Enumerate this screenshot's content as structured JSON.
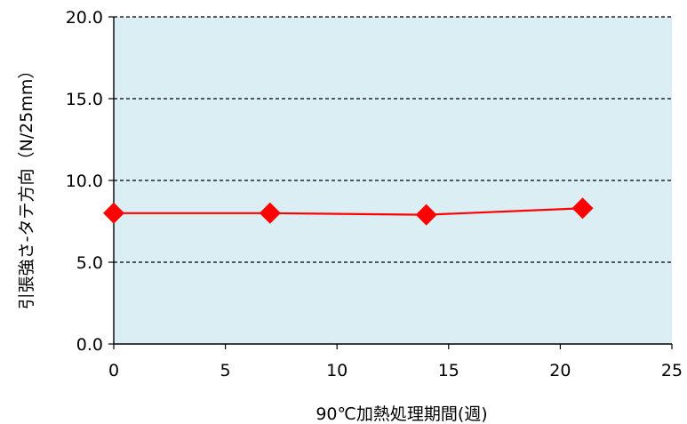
{
  "chart_data": {
    "type": "line",
    "title": "",
    "xlabel": "90℃加熱処理期間(週)",
    "ylabel": "引張強さ-タテ方向（N/25mm）",
    "xlim": [
      0,
      25
    ],
    "ylim": [
      0,
      20
    ],
    "x_ticks": [
      "0",
      "5",
      "10",
      "15",
      "20",
      "25"
    ],
    "y_ticks": [
      "0.0",
      "5.0",
      "10.0",
      "15.0",
      "20.0"
    ],
    "grid": "horizontal dashed",
    "legend": "none",
    "series": [
      {
        "x": [
          0,
          7,
          14,
          21
        ],
        "values": [
          8.0,
          8.0,
          7.9,
          8.3
        ],
        "color": "#ff0000",
        "marker": "diamond"
      }
    ],
    "colors": {
      "plot_background": "#daeef3",
      "line": "#ff0000",
      "marker": "#ff0000",
      "axis": "#000000",
      "grid": "#000000"
    }
  }
}
